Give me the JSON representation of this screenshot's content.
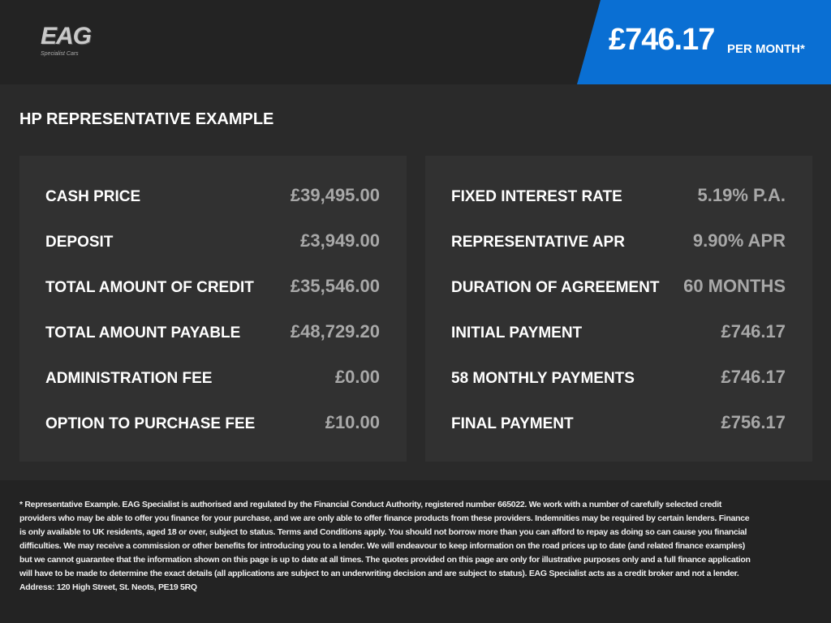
{
  "header": {
    "logo": "EAG",
    "logo_sub": "Specialist Cars",
    "price": "£746.17",
    "price_suffix": "PER MONTH*"
  },
  "title": "HP REPRESENTATIVE EXAMPLE",
  "left": [
    [
      "CASH PRICE",
      "£39,495.00"
    ],
    [
      "DEPOSIT",
      "£3,949.00"
    ],
    [
      "TOTAL AMOUNT OF CREDIT",
      "£35,546.00"
    ],
    [
      "TOTAL AMOUNT PAYABLE",
      "£48,729.20"
    ],
    [
      "ADMINISTRATION FEE",
      "£0.00"
    ],
    [
      "OPTION TO PURCHASE FEE",
      "£10.00"
    ]
  ],
  "right": [
    [
      "FIXED INTEREST RATE",
      "5.19% P.A."
    ],
    [
      "REPRESENTATIVE APR",
      "9.90% APR"
    ],
    [
      "DURATION OF AGREEMENT",
      "60 MONTHS"
    ],
    [
      "INITIAL PAYMENT",
      "£746.17"
    ],
    [
      "58 MONTHLY PAYMENTS",
      "£746.17"
    ],
    [
      "FINAL PAYMENT",
      "£756.17"
    ]
  ],
  "footer": "* Representative Example. EAG Specialist is authorised and regulated by the Financial Conduct Authority, registered number 665022. We work with a number of carefully selected credit providers who may be able to offer you finance for your purchase, and we are only able to offer finance products from these providers. Indemnities may be required by certain lenders. Finance is only available to UK residents, aged 18 or over, subject to status. Terms and Conditions apply. You should not borrow more than you can afford to repay as doing so can cause you financial difficulties. We may receive a commission or other benefits for introducing you to a lender. We will endeavour to keep information on the road prices up to date (and related finance examples) but we cannot guarantee that the information shown on this page is up to date at all times. The quotes provided on this page are only for illustrative purposes only and a full finance application will have to be made to determine the exact details (all applications are subject to an underwriting decision and are subject to status). EAG Specialist acts as a credit broker and not a lender. Address: 120 High Street, St. Neots, PE19 5RQ"
}
